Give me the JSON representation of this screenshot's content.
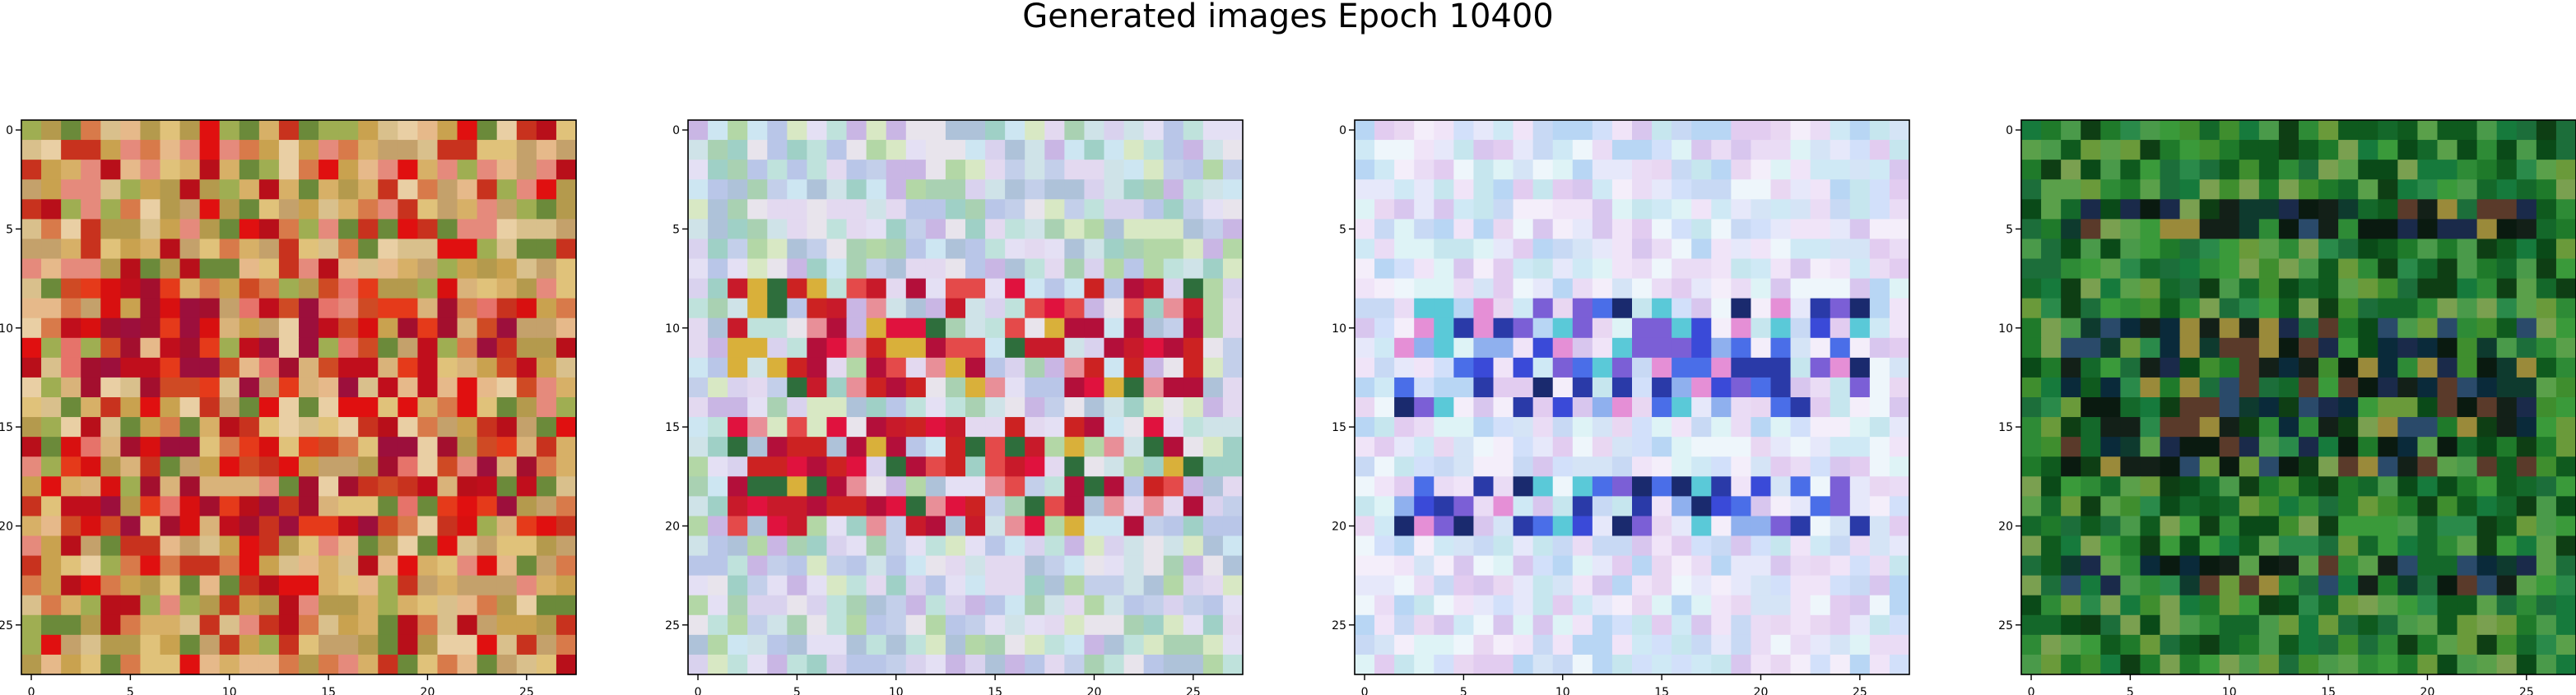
{
  "figure": {
    "title": "Generated images Epoch 10400"
  },
  "chart_data": [
    {
      "type": "heatmap",
      "grid_size": 28,
      "xticks": [
        0,
        5,
        10,
        15,
        20,
        25
      ],
      "yticks": [
        0,
        5,
        10,
        15,
        20,
        25
      ],
      "xlim": [
        -0.5,
        27.5
      ],
      "ylim": [
        27.5,
        -0.5
      ],
      "palette": [
        "#d7b067",
        "#c9a24f",
        "#e0c27a",
        "#b49a4d",
        "#e6b98a",
        "#d87a4a",
        "#c8321e",
        "#e01010",
        "#b80f1a",
        "#e58a7c",
        "#9fae52",
        "#6b8a3a",
        "#d9c08c",
        "#e9cfa4",
        "#c4a16b"
      ],
      "hot_rows": [
        8,
        9,
        10,
        11,
        12,
        13,
        16,
        17,
        18,
        19,
        20
      ],
      "hot_palette": [
        "#d81010",
        "#c00e1c",
        "#e53a1a",
        "#a30f2e",
        "#e6736a",
        "#d9b37a",
        "#9c0f3c",
        "#cf4a24"
      ]
    },
    {
      "type": "heatmap",
      "grid_size": 28,
      "xticks": [
        0,
        5,
        10,
        15,
        20,
        25
      ],
      "yticks": [
        0,
        5,
        10,
        15,
        20,
        25
      ],
      "xlim": [
        -0.5,
        27.5
      ],
      "ylim": [
        27.5,
        -0.5
      ],
      "palette": [
        "#cfe3e8",
        "#d9d2ee",
        "#bfe2dc",
        "#c3cfea",
        "#e3d9f0",
        "#a9d1b2",
        "#d8e8c4",
        "#cde6f2",
        "#b9c6e8",
        "#e4e0f4",
        "#9fd0c6",
        "#c9b6e4",
        "#e8e4ec",
        "#aec2d9",
        "#b3d7a6"
      ],
      "hot_rows": [
        8,
        9,
        10,
        11,
        12,
        13,
        15,
        16,
        17,
        18,
        19,
        20
      ],
      "hot_palette": [
        "#e0123e",
        "#c81a2a",
        "#e44a4a",
        "#b30f3a",
        "#e88f98",
        "#cc2222",
        "#2e6e3c",
        "#d9b03a"
      ]
    },
    {
      "type": "heatmap",
      "grid_size": 28,
      "xticks": [
        0,
        5,
        10,
        15,
        20,
        25
      ],
      "yticks": [
        0,
        5,
        10,
        15,
        20,
        25
      ],
      "xlim": [
        -0.5,
        27.5
      ],
      "ylim": [
        27.5,
        -0.5
      ],
      "palette": [
        "#e6e8fa",
        "#d5e4f6",
        "#e9d7f2",
        "#cfe9f5",
        "#f0e4f8",
        "#c8d9f4",
        "#def3f6",
        "#eadcf5",
        "#d2e0fa",
        "#f4eefa",
        "#c6e6ee",
        "#e2ccf0",
        "#b8d6f4",
        "#eef6fb",
        "#d8c6ee"
      ],
      "hot_rows": [
        9,
        10,
        11,
        12,
        13,
        14,
        18,
        19,
        20
      ],
      "hot_palette": [
        "#4a6ee8",
        "#2a3aa8",
        "#7b5fd6",
        "#1a2a6e",
        "#8fb0ee",
        "#e58fd6",
        "#5ac9d8",
        "#3a4ad8"
      ]
    },
    {
      "type": "heatmap",
      "grid_size": 28,
      "xticks": [
        0,
        5,
        10,
        15,
        20,
        25
      ],
      "yticks": [
        0,
        5,
        10,
        15,
        20,
        25
      ],
      "xlim": [
        -0.5,
        27.5
      ],
      "ylim": [
        27.5,
        -0.5
      ],
      "palette": [
        "#1f7a2a",
        "#2e8b36",
        "#0f5a1e",
        "#3a9a3a",
        "#14682a",
        "#4a9a4a",
        "#0a4a18",
        "#5aa04a",
        "#1c6e3a",
        "#2a8a4a",
        "#6a9a3a",
        "#0e3e14",
        "#3f8e2e",
        "#167a3c",
        "#7aa050"
      ],
      "hot_rows": [
        4,
        5,
        10,
        11,
        12,
        13,
        14,
        15,
        16,
        17,
        22,
        23
      ],
      "hot_palette": [
        "#0a1a10",
        "#1a2a4a",
        "#5a3a2a",
        "#0e3a2e",
        "#2a4a6a",
        "#9a8a3a",
        "#132018",
        "#0a2a3a"
      ]
    }
  ]
}
